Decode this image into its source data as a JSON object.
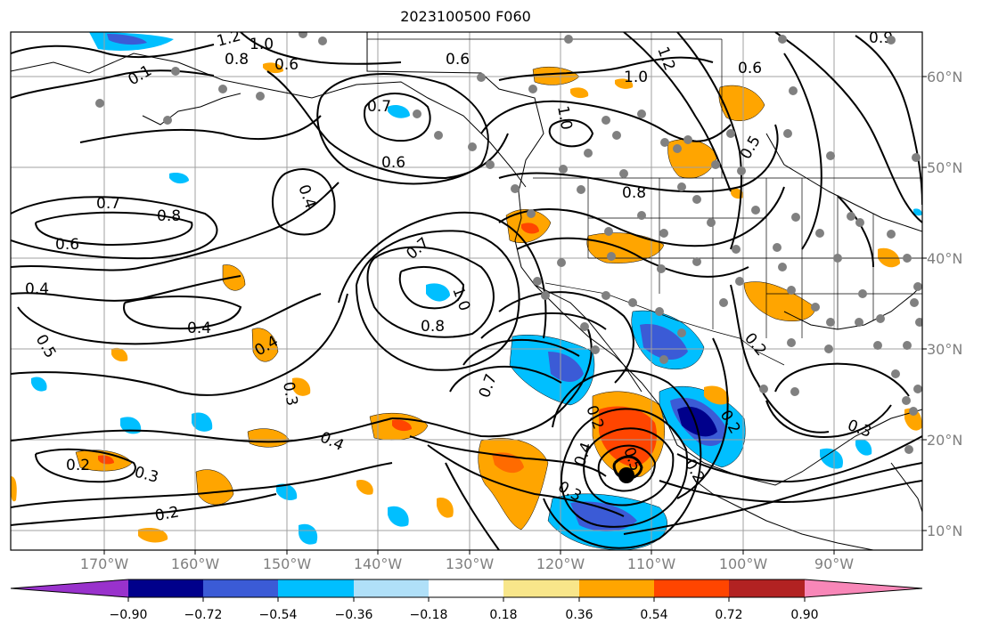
{
  "title": "2023100500 F060",
  "lat_ticks": [
    "60°N",
    "50°N",
    "40°N",
    "30°N",
    "20°N",
    "10°N"
  ],
  "lon_ticks": [
    "170°W",
    "160°W",
    "150°W",
    "140°W",
    "130°W",
    "120°W",
    "110°W",
    "100°W",
    "90°W"
  ],
  "colorbar": {
    "tick_labels": [
      "−0.90",
      "−0.72",
      "−0.54",
      "−0.36",
      "−0.18",
      "0.18",
      "0.36",
      "0.54",
      "0.72",
      "0.90"
    ],
    "colors": [
      "#9932cc",
      "#00008b",
      "#3b5bd6",
      "#00bfff",
      "#b0e0f8",
      "#ffffff",
      "#f8e68a",
      "#ffa500",
      "#ff4500",
      "#b22222",
      "#f887b8"
    ]
  },
  "contour_labels": [
    "1.2",
    "1.0",
    "0.8",
    "0.6",
    "1.0",
    "1.2",
    "0.6",
    "0.7",
    "0.6",
    "0.7",
    "0.8",
    "0.6",
    "0.4",
    "0.5",
    "0.4",
    "0.4",
    "0.4",
    "0.3",
    "0.4",
    "0.2",
    "0.3",
    "0.2",
    "0.7",
    "1.0",
    "0.8",
    "0.7",
    "0.2",
    "0.5",
    "0.4",
    "0.3",
    "0.8",
    "1.0",
    "0.5",
    "0.2",
    "0.2",
    "0.2",
    "0.3",
    "0.1",
    "0.9",
    "0.6"
  ],
  "legend": {
    "map_colors": {
      "ocean_land": "#ffffff",
      "stations": "#808080",
      "contours": "#000000"
    }
  }
}
